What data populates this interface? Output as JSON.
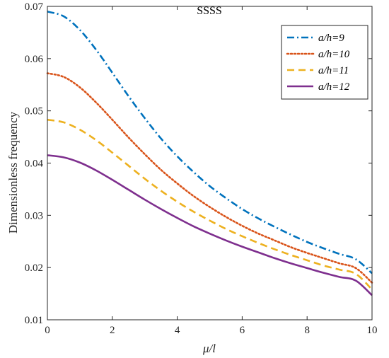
{
  "chart_data": {
    "type": "line",
    "title": "SSSS",
    "xlabel": "μ/l",
    "ylabel": "Dimensionless frequency",
    "xlim": [
      0,
      10
    ],
    "ylim": [
      0.01,
      0.07
    ],
    "x_ticks": [
      "0",
      "2",
      "4",
      "6",
      "8",
      "10"
    ],
    "y_ticks": [
      "0.01",
      "0.02",
      "0.03",
      "0.04",
      "0.05",
      "0.06",
      "0.07"
    ],
    "grid": false,
    "legend_position": "top-right",
    "x": [
      0,
      0.5,
      1,
      1.5,
      2,
      2.5,
      3,
      3.5,
      4,
      4.5,
      5,
      5.5,
      6,
      6.5,
      7,
      7.5,
      8,
      8.5,
      9,
      9.5,
      10
    ],
    "series": [
      {
        "name": "a/h=9",
        "color": "#0072BD",
        "dash": "dashdot",
        "values": [
          0.069,
          0.0681,
          0.0655,
          0.0617,
          0.0573,
          0.0528,
          0.0486,
          0.0447,
          0.0413,
          0.0383,
          0.0356,
          0.0333,
          0.0312,
          0.0294,
          0.0278,
          0.0263,
          0.0249,
          0.0237,
          0.0226,
          0.0216,
          0.0189
        ]
      },
      {
        "name": "a/h=10",
        "color": "#D95319",
        "dash": "dotted",
        "values": [
          0.0572,
          0.0565,
          0.0545,
          0.0516,
          0.0483,
          0.0449,
          0.0417,
          0.0387,
          0.0361,
          0.0337,
          0.0316,
          0.0297,
          0.028,
          0.0265,
          0.0252,
          0.0239,
          0.0228,
          0.0218,
          0.0208,
          0.0199,
          0.0171
        ]
      },
      {
        "name": "a/h=11",
        "color": "#EDB120",
        "dash": "dashed",
        "values": [
          0.0483,
          0.0478,
          0.0464,
          0.0444,
          0.042,
          0.0395,
          0.037,
          0.0347,
          0.0326,
          0.0307,
          0.029,
          0.0274,
          0.026,
          0.0247,
          0.0235,
          0.0224,
          0.0214,
          0.0204,
          0.0196,
          0.0188,
          0.0158
        ]
      },
      {
        "name": "a/h=12",
        "color": "#7E2F8E",
        "dash": "solid",
        "values": [
          0.0415,
          0.0411,
          0.0401,
          0.0386,
          0.0368,
          0.0349,
          0.033,
          0.0312,
          0.0295,
          0.0279,
          0.0265,
          0.0252,
          0.024,
          0.0229,
          0.0218,
          0.0208,
          0.0199,
          0.019,
          0.0182,
          0.0175,
          0.0147
        ]
      }
    ]
  }
}
